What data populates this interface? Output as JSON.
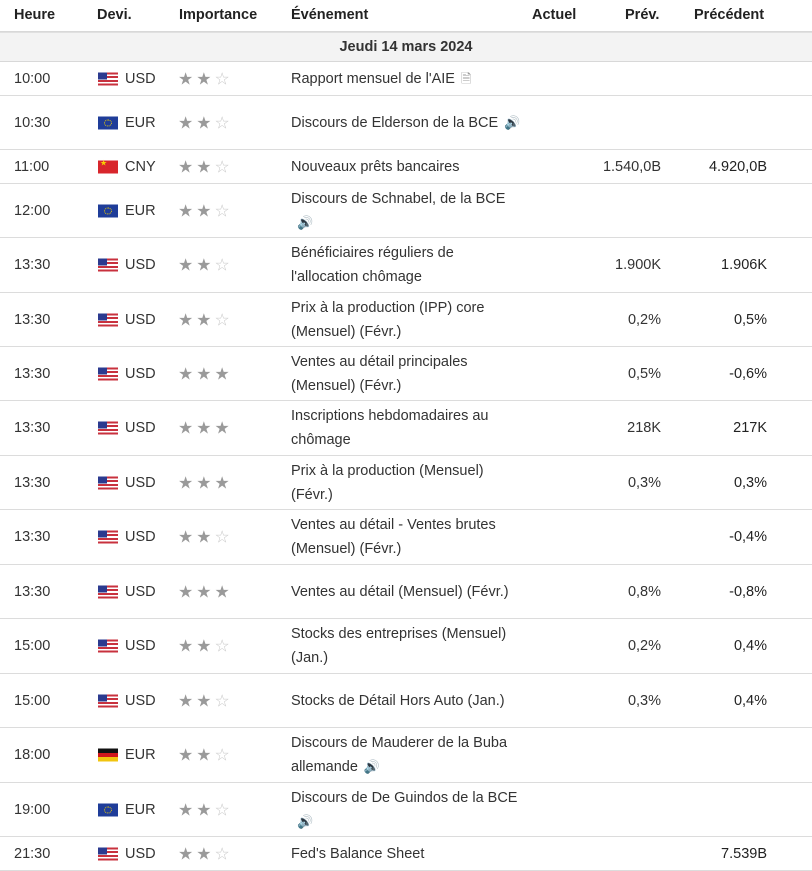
{
  "header": {
    "time": "Heure",
    "currency": "Devi.",
    "importance": "Importance",
    "event": "Événement",
    "actual": "Actuel",
    "forecast": "Prév.",
    "previous": "Précédent"
  },
  "day_label": "Jeudi 14 mars 2024",
  "rows": [
    {
      "time": "10:00",
      "flag": "us",
      "currency": "USD",
      "stars": 2,
      "event": "Rapport mensuel de l'AIE",
      "icon": "document-icon",
      "forecast": "",
      "previous": ""
    },
    {
      "time": "10:30",
      "flag": "eu",
      "currency": "EUR",
      "stars": 2,
      "event": "Discours de Elderson de la BCE",
      "icon": "speaker-icon",
      "forecast": "",
      "previous": ""
    },
    {
      "time": "11:00",
      "flag": "cn",
      "currency": "CNY",
      "stars": 2,
      "event": "Nouveaux prêts bancaires",
      "icon": "",
      "forecast": "1.540,0B",
      "previous": "4.920,0B"
    },
    {
      "time": "12:00",
      "flag": "eu",
      "currency": "EUR",
      "stars": 2,
      "event": "Discours de Schnabel, de la BCE",
      "icon": "speaker-icon",
      "forecast": "",
      "previous": ""
    },
    {
      "time": "13:30",
      "flag": "us",
      "currency": "USD",
      "stars": 2,
      "event": "Bénéficiaires réguliers de l'allocation chômage",
      "icon": "",
      "forecast": "1.900K",
      "previous": "1.906K"
    },
    {
      "time": "13:30",
      "flag": "us",
      "currency": "USD",
      "stars": 2,
      "event": "Prix à la production (IPP) core (Mensuel) (Févr.)",
      "icon": "",
      "forecast": "0,2%",
      "previous": "0,5%"
    },
    {
      "time": "13:30",
      "flag": "us",
      "currency": "USD",
      "stars": 3,
      "event": "Ventes au détail principales (Mensuel) (Févr.)",
      "icon": "",
      "forecast": "0,5%",
      "previous": "-0,6%"
    },
    {
      "time": "13:30",
      "flag": "us",
      "currency": "USD",
      "stars": 3,
      "event": "Inscriptions hebdomadaires au chômage",
      "icon": "",
      "forecast": "218K",
      "previous": "217K"
    },
    {
      "time": "13:30",
      "flag": "us",
      "currency": "USD",
      "stars": 3,
      "event": "Prix à la production (Mensuel) (Févr.)",
      "icon": "",
      "forecast": "0,3%",
      "previous": "0,3%"
    },
    {
      "time": "13:30",
      "flag": "us",
      "currency": "USD",
      "stars": 2,
      "event": "Ventes au détail - Ventes brutes (Mensuel) (Févr.)",
      "icon": "",
      "forecast": "",
      "previous": "-0,4%"
    },
    {
      "time": "13:30",
      "flag": "us",
      "currency": "USD",
      "stars": 3,
      "event": "Ventes au détail (Mensuel) (Févr.)",
      "icon": "",
      "forecast": "0,8%",
      "previous": "-0,8%"
    },
    {
      "time": "15:00",
      "flag": "us",
      "currency": "USD",
      "stars": 2,
      "event": "Stocks des entreprises (Mensuel) (Jan.)",
      "icon": "",
      "forecast": "0,2%",
      "previous": "0,4%"
    },
    {
      "time": "15:00",
      "flag": "us",
      "currency": "USD",
      "stars": 2,
      "event": "Stocks de Détail Hors Auto (Jan.)",
      "icon": "",
      "forecast": "0,3%",
      "previous": "0,4%"
    },
    {
      "time": "18:00",
      "flag": "de",
      "currency": "EUR",
      "stars": 2,
      "event": "Discours de Mauderer de la Buba allemande",
      "icon": "speaker-icon",
      "forecast": "",
      "previous": ""
    },
    {
      "time": "19:00",
      "flag": "eu",
      "currency": "EUR",
      "stars": 2,
      "event": "Discours de De Guindos de la BCE",
      "icon": "speaker-icon",
      "forecast": "",
      "previous": ""
    },
    {
      "time": "21:30",
      "flag": "us",
      "currency": "USD",
      "stars": 2,
      "event": "Fed's Balance Sheet",
      "icon": "",
      "forecast": "",
      "previous": "7.539B"
    }
  ]
}
